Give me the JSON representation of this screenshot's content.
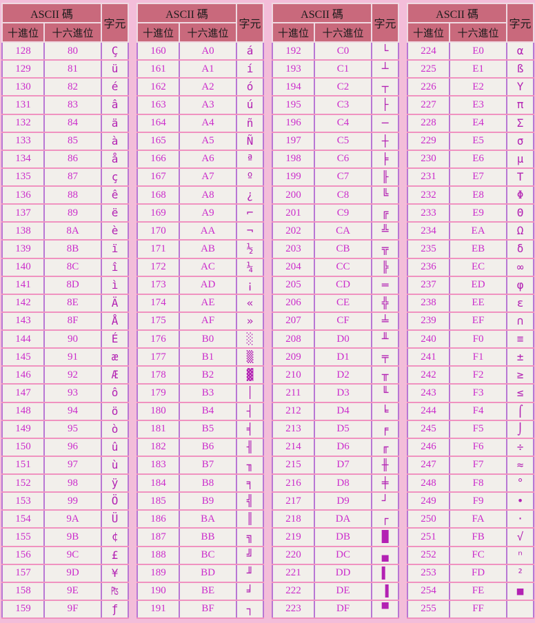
{
  "title": "Extended ASCII code table (128-255)",
  "colors": {
    "page_bg": "#f3bdd9",
    "header_bg": "#c9697c",
    "header_text": "#1c1c1c",
    "number_text": "#cb2bcb",
    "char_text": "#b322b3",
    "grid_horizontal": "#f092c0",
    "grid_vertical": "#b876d4",
    "table_border": "#a95fc9",
    "cell_bg": "#f2efeb"
  },
  "header": {
    "ascii": "ASCII 碼",
    "dec": "十進位",
    "hex": "十六進位",
    "char": "字元"
  },
  "groups": [
    {
      "rows": [
        [
          "128",
          "80",
          "Ç"
        ],
        [
          "129",
          "81",
          "ü"
        ],
        [
          "130",
          "82",
          "é"
        ],
        [
          "131",
          "83",
          "â"
        ],
        [
          "132",
          "84",
          "ä"
        ],
        [
          "133",
          "85",
          "à"
        ],
        [
          "134",
          "86",
          "å"
        ],
        [
          "135",
          "87",
          "ç"
        ],
        [
          "136",
          "88",
          "ê"
        ],
        [
          "137",
          "89",
          "ë"
        ],
        [
          "138",
          "8A",
          "è"
        ],
        [
          "139",
          "8B",
          "ï"
        ],
        [
          "140",
          "8C",
          "î"
        ],
        [
          "141",
          "8D",
          "ì"
        ],
        [
          "142",
          "8E",
          "Ä"
        ],
        [
          "143",
          "8F",
          "Å"
        ],
        [
          "144",
          "90",
          "É"
        ],
        [
          "145",
          "91",
          "æ"
        ],
        [
          "146",
          "92",
          "Æ"
        ],
        [
          "147",
          "93",
          "ô"
        ],
        [
          "148",
          "94",
          "ö"
        ],
        [
          "149",
          "95",
          "ò"
        ],
        [
          "150",
          "96",
          "û"
        ],
        [
          "151",
          "97",
          "ù"
        ],
        [
          "152",
          "98",
          "ÿ"
        ],
        [
          "153",
          "99",
          "Ö"
        ],
        [
          "154",
          "9A",
          "Ü"
        ],
        [
          "155",
          "9B",
          "¢"
        ],
        [
          "156",
          "9C",
          "£"
        ],
        [
          "157",
          "9D",
          "¥"
        ],
        [
          "158",
          "9E",
          "₧"
        ],
        [
          "159",
          "9F",
          "ƒ"
        ]
      ]
    },
    {
      "rows": [
        [
          "160",
          "A0",
          "á"
        ],
        [
          "161",
          "A1",
          "í"
        ],
        [
          "162",
          "A2",
          "ó"
        ],
        [
          "163",
          "A3",
          "ú"
        ],
        [
          "164",
          "A4",
          "ñ"
        ],
        [
          "165",
          "A5",
          "Ñ"
        ],
        [
          "166",
          "A6",
          "ª"
        ],
        [
          "167",
          "A7",
          "º"
        ],
        [
          "168",
          "A8",
          "¿"
        ],
        [
          "169",
          "A9",
          "⌐"
        ],
        [
          "170",
          "AA",
          "¬"
        ],
        [
          "171",
          "AB",
          "½"
        ],
        [
          "172",
          "AC",
          "¼"
        ],
        [
          "173",
          "AD",
          "¡"
        ],
        [
          "174",
          "AE",
          "«"
        ],
        [
          "175",
          "AF",
          "»"
        ],
        [
          "176",
          "B0",
          "░"
        ],
        [
          "177",
          "B1",
          "▒"
        ],
        [
          "178",
          "B2",
          "▓"
        ],
        [
          "179",
          "B3",
          "│"
        ],
        [
          "180",
          "B4",
          "┤"
        ],
        [
          "181",
          "B5",
          "╡"
        ],
        [
          "182",
          "B6",
          "╢"
        ],
        [
          "183",
          "B7",
          "╖"
        ],
        [
          "184",
          "B8",
          "╕"
        ],
        [
          "185",
          "B9",
          "╣"
        ],
        [
          "186",
          "BA",
          "║"
        ],
        [
          "187",
          "BB",
          "╗"
        ],
        [
          "188",
          "BC",
          "╝"
        ],
        [
          "189",
          "BD",
          "╜"
        ],
        [
          "190",
          "BE",
          "╛"
        ],
        [
          "191",
          "BF",
          "┐"
        ]
      ]
    },
    {
      "rows": [
        [
          "192",
          "C0",
          "└"
        ],
        [
          "193",
          "C1",
          "┴"
        ],
        [
          "194",
          "C2",
          "┬"
        ],
        [
          "195",
          "C3",
          "├"
        ],
        [
          "196",
          "C4",
          "─"
        ],
        [
          "197",
          "C5",
          "┼"
        ],
        [
          "198",
          "C6",
          "╞"
        ],
        [
          "199",
          "C7",
          "╟"
        ],
        [
          "200",
          "C8",
          "╚"
        ],
        [
          "201",
          "C9",
          "╔"
        ],
        [
          "202",
          "CA",
          "╩"
        ],
        [
          "203",
          "CB",
          "╦"
        ],
        [
          "204",
          "CC",
          "╠"
        ],
        [
          "205",
          "CD",
          "═"
        ],
        [
          "206",
          "CE",
          "╬"
        ],
        [
          "207",
          "CF",
          "╧"
        ],
        [
          "208",
          "D0",
          "╨"
        ],
        [
          "209",
          "D1",
          "╤"
        ],
        [
          "210",
          "D2",
          "╥"
        ],
        [
          "211",
          "D3",
          "╙"
        ],
        [
          "212",
          "D4",
          "╘"
        ],
        [
          "213",
          "D5",
          "╒"
        ],
        [
          "214",
          "D6",
          "╓"
        ],
        [
          "215",
          "D7",
          "╫"
        ],
        [
          "216",
          "D8",
          "╪"
        ],
        [
          "217",
          "D9",
          "┘"
        ],
        [
          "218",
          "DA",
          "┌"
        ],
        [
          "219",
          "DB",
          "█"
        ],
        [
          "220",
          "DC",
          "▄"
        ],
        [
          "221",
          "DD",
          "▌"
        ],
        [
          "222",
          "DE",
          "▐"
        ],
        [
          "223",
          "DF",
          "▀"
        ]
      ]
    },
    {
      "rows": [
        [
          "224",
          "E0",
          "α"
        ],
        [
          "225",
          "E1",
          "ß"
        ],
        [
          "226",
          "E2",
          "Υ"
        ],
        [
          "227",
          "E3",
          "π"
        ],
        [
          "228",
          "E4",
          "Σ"
        ],
        [
          "229",
          "E5",
          "σ"
        ],
        [
          "230",
          "E6",
          "μ"
        ],
        [
          "231",
          "E7",
          "Τ"
        ],
        [
          "232",
          "E8",
          "Φ"
        ],
        [
          "233",
          "E9",
          "Θ"
        ],
        [
          "234",
          "EA",
          "Ω"
        ],
        [
          "235",
          "EB",
          "δ"
        ],
        [
          "236",
          "EC",
          "∞"
        ],
        [
          "237",
          "ED",
          "φ"
        ],
        [
          "238",
          "EE",
          "ε"
        ],
        [
          "239",
          "EF",
          "∩"
        ],
        [
          "240",
          "F0",
          "≡"
        ],
        [
          "241",
          "F1",
          "±"
        ],
        [
          "242",
          "F2",
          "≥"
        ],
        [
          "243",
          "F3",
          "≤"
        ],
        [
          "244",
          "F4",
          "⌠"
        ],
        [
          "245",
          "F5",
          "⌡"
        ],
        [
          "246",
          "F6",
          "÷"
        ],
        [
          "247",
          "F7",
          "≈"
        ],
        [
          "248",
          "F8",
          "°"
        ],
        [
          "249",
          "F9",
          "•"
        ],
        [
          "250",
          "FA",
          "·"
        ],
        [
          "251",
          "FB",
          "√"
        ],
        [
          "252",
          "FC",
          "ⁿ"
        ],
        [
          "253",
          "FD",
          "²"
        ],
        [
          "254",
          "FE",
          "■"
        ],
        [
          "255",
          "FF",
          ""
        ]
      ]
    }
  ]
}
